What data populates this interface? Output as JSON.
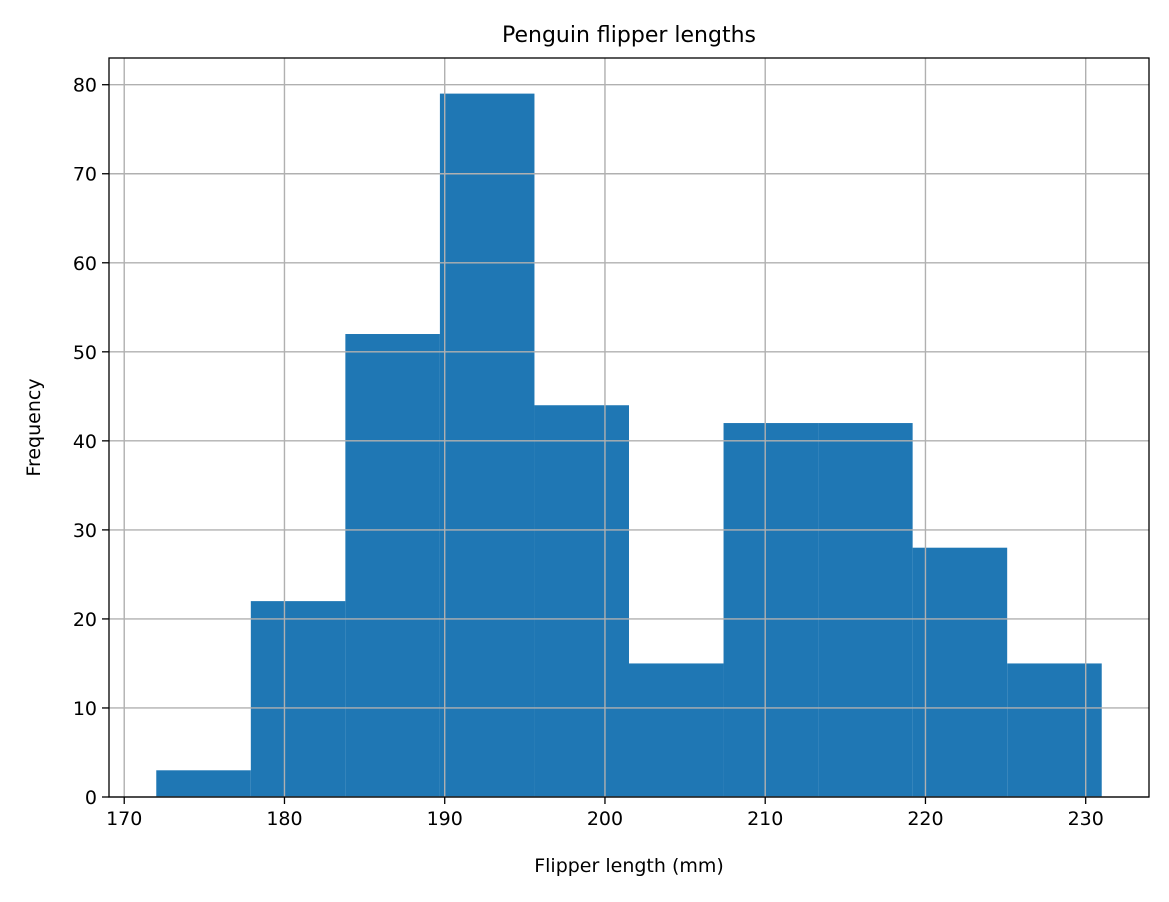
{
  "chart_data": {
    "type": "bar",
    "subtype": "histogram",
    "title": "Penguin flipper lengths",
    "xlabel": "Flipper length (mm)",
    "ylabel": "Frequency",
    "bins": [
      {
        "start": 172.0,
        "end": 177.9,
        "count": 3
      },
      {
        "start": 177.9,
        "end": 183.8,
        "count": 22
      },
      {
        "start": 183.8,
        "end": 189.7,
        "count": 52
      },
      {
        "start": 189.7,
        "end": 195.6,
        "count": 79
      },
      {
        "start": 195.6,
        "end": 201.5,
        "count": 44
      },
      {
        "start": 201.5,
        "end": 207.4,
        "count": 15
      },
      {
        "start": 207.4,
        "end": 213.3,
        "count": 42
      },
      {
        "start": 213.3,
        "end": 219.2,
        "count": 42
      },
      {
        "start": 219.2,
        "end": 225.1,
        "count": 28
      },
      {
        "start": 225.1,
        "end": 231.0,
        "count": 15
      }
    ],
    "xlim": [
      169.05,
      233.95
    ],
    "ylim": [
      0,
      83
    ],
    "xticks": [
      "170",
      "180",
      "190",
      "200",
      "210",
      "220",
      "230"
    ],
    "yticks": [
      "0",
      "10",
      "20",
      "30",
      "40",
      "50",
      "60",
      "70",
      "80"
    ],
    "grid": true,
    "bar_color": "#1f77b4",
    "grid_color": "#b0b0b0"
  }
}
